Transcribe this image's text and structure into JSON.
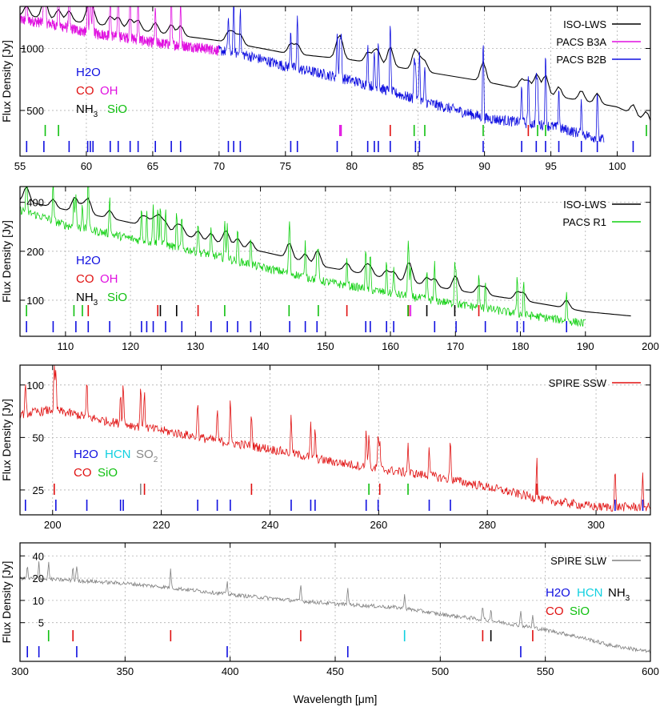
{
  "colors": {
    "H2O": "#1010e0",
    "CO": "#e01010",
    "OH": "#e010e0",
    "NH3": "#000000",
    "SiO": "#10c010",
    "HCN": "#10d0e0",
    "SO2": "#888888",
    "ISO-LWS": "#000000",
    "PACS B3A": "#e010e0",
    "PACS B2B": "#1010e0",
    "PACS R1": "#10d010",
    "SPIRE SSW": "#e01010",
    "SPIRE SLW": "#808080"
  },
  "chart_data": [
    {
      "type": "line",
      "panel": 1,
      "ylabel": "Flux Density [Jy]",
      "xlim": [
        55,
        102.5
      ],
      "ylim": [
        300,
        1600
      ],
      "yscale": "log",
      "xticks": [
        55,
        60,
        65,
        70,
        75,
        80,
        85,
        90,
        95,
        100
      ],
      "yticks": [
        500,
        1000
      ],
      "grid": true,
      "legend_position": "top-right",
      "legend": [
        "ISO-LWS",
        "PACS B3A",
        "PACS B2B"
      ],
      "species_labels": [
        [
          "H2O"
        ],
        [
          "CO",
          "OH"
        ],
        [
          "NH3",
          "SiO"
        ]
      ],
      "series": [
        {
          "name": "ISO-LWS",
          "x": [
            55,
            60,
            65,
            70,
            75,
            80,
            85,
            90,
            95,
            100,
            102.5
          ],
          "values": [
            1450,
            1330,
            1200,
            1090,
            950,
            880,
            780,
            690,
            590,
            520,
            430
          ]
        },
        {
          "name": "PACS B3A",
          "x": [
            55,
            57,
            60,
            63,
            65,
            68,
            70
          ],
          "values": [
            1380,
            1330,
            1200,
            1130,
            1070,
            1020,
            980
          ]
        },
        {
          "name": "PACS B2B",
          "x": [
            70,
            72,
            75,
            80,
            85,
            90,
            95,
            99
          ],
          "values": [
            980,
            930,
            820,
            700,
            560,
            460,
            420,
            360
          ]
        }
      ],
      "line_markers": [
        {
          "x": 55.5,
          "species": "H2O"
        },
        {
          "x": 56.8,
          "species": "H2O"
        },
        {
          "x": 58.7,
          "species": "H2O"
        },
        {
          "x": 60.1,
          "species": "H2O"
        },
        {
          "x": 60.3,
          "species": "H2O"
        },
        {
          "x": 60.5,
          "species": "H2O"
        },
        {
          "x": 61.8,
          "species": "H2O"
        },
        {
          "x": 62.4,
          "species": "H2O"
        },
        {
          "x": 63.3,
          "species": "H2O"
        },
        {
          "x": 63.9,
          "species": "H2O"
        },
        {
          "x": 65.2,
          "species": "H2O"
        },
        {
          "x": 66.4,
          "species": "H2O"
        },
        {
          "x": 67.1,
          "species": "H2O"
        },
        {
          "x": 70.7,
          "species": "H2O"
        },
        {
          "x": 71.1,
          "species": "H2O"
        },
        {
          "x": 71.6,
          "species": "H2O"
        },
        {
          "x": 75.4,
          "species": "H2O"
        },
        {
          "x": 75.9,
          "species": "H2O"
        },
        {
          "x": 78.9,
          "species": "H2O"
        },
        {
          "x": 81.2,
          "species": "H2O"
        },
        {
          "x": 81.7,
          "species": "H2O"
        },
        {
          "x": 82.0,
          "species": "H2O"
        },
        {
          "x": 82.9,
          "species": "H2O"
        },
        {
          "x": 84.8,
          "species": "H2O"
        },
        {
          "x": 85.1,
          "species": "H2O"
        },
        {
          "x": 89.9,
          "species": "H2O"
        },
        {
          "x": 92.8,
          "species": "H2O"
        },
        {
          "x": 93.9,
          "species": "H2O"
        },
        {
          "x": 94.6,
          "species": "H2O"
        },
        {
          "x": 95.6,
          "species": "H2O"
        },
        {
          "x": 97.3,
          "species": "H2O"
        },
        {
          "x": 98.5,
          "species": "H2O"
        },
        {
          "x": 101.2,
          "species": "H2O"
        },
        {
          "x": 82.9,
          "species": "CO",
          "row": 1
        },
        {
          "x": 93.3,
          "species": "CO",
          "row": 1
        },
        {
          "x": 79.2,
          "species": "OH",
          "row": 1
        },
        {
          "x": 79.1,
          "species": "OH",
          "row": 1
        },
        {
          "x": 56.9,
          "species": "SiO",
          "row": 1
        },
        {
          "x": 57.9,
          "species": "SiO",
          "row": 1
        },
        {
          "x": 84.7,
          "species": "SiO",
          "row": 1
        },
        {
          "x": 85.5,
          "species": "SiO",
          "row": 1
        },
        {
          "x": 89.9,
          "species": "SiO",
          "row": 1
        },
        {
          "x": 94.0,
          "species": "SiO",
          "row": 1
        },
        {
          "x": 94.6,
          "species": "SiO",
          "row": 1
        },
        {
          "x": 102.2,
          "species": "SiO",
          "row": 1
        }
      ]
    },
    {
      "type": "line",
      "panel": 2,
      "ylabel": "Flux Density [Jy]",
      "xlim": [
        103,
        200
      ],
      "ylim": [
        60,
        500
      ],
      "yscale": "log",
      "xticks": [
        110,
        120,
        130,
        140,
        150,
        160,
        170,
        180,
        190,
        200
      ],
      "yticks": [
        100,
        200,
        400
      ],
      "grid": true,
      "legend_position": "top-right",
      "legend": [
        "ISO-LWS",
        "PACS R1"
      ],
      "species_labels": [
        [
          "H2O"
        ],
        [
          "CO",
          "OH"
        ],
        [
          "NH3",
          "SiO"
        ]
      ],
      "series": [
        {
          "name": "ISO-LWS",
          "x": [
            103,
            110,
            120,
            130,
            140,
            150,
            160,
            170,
            180,
            190,
            197
          ],
          "values": [
            410,
            360,
            300,
            240,
            200,
            160,
            135,
            115,
            100,
            85,
            80
          ]
        },
        {
          "name": "PACS R1",
          "x": [
            103,
            110,
            120,
            130,
            140,
            150,
            160,
            170,
            180,
            190
          ],
          "values": [
            360,
            290,
            240,
            200,
            160,
            130,
            110,
            95,
            82,
            72
          ]
        }
      ],
      "line_markers": [
        {
          "x": 104.0,
          "species": "H2O"
        },
        {
          "x": 108.1,
          "species": "H2O"
        },
        {
          "x": 111.6,
          "species": "H2O"
        },
        {
          "x": 113.5,
          "species": "H2O"
        },
        {
          "x": 116.8,
          "species": "H2O"
        },
        {
          "x": 121.7,
          "species": "H2O"
        },
        {
          "x": 122.5,
          "species": "H2O"
        },
        {
          "x": 123.5,
          "species": "H2O"
        },
        {
          "x": 125.4,
          "species": "H2O"
        },
        {
          "x": 127.9,
          "species": "H2O"
        },
        {
          "x": 132.4,
          "species": "H2O"
        },
        {
          "x": 134.9,
          "species": "H2O"
        },
        {
          "x": 136.5,
          "species": "H2O"
        },
        {
          "x": 138.5,
          "species": "H2O"
        },
        {
          "x": 144.5,
          "species": "H2O"
        },
        {
          "x": 146.9,
          "species": "H2O"
        },
        {
          "x": 148.7,
          "species": "H2O"
        },
        {
          "x": 156.2,
          "species": "H2O"
        },
        {
          "x": 156.9,
          "species": "H2O"
        },
        {
          "x": 159.4,
          "species": "H2O"
        },
        {
          "x": 160.5,
          "species": "H2O"
        },
        {
          "x": 166.8,
          "species": "H2O"
        },
        {
          "x": 170.1,
          "species": "H2O"
        },
        {
          "x": 174.6,
          "species": "H2O"
        },
        {
          "x": 179.5,
          "species": "H2O"
        },
        {
          "x": 180.5,
          "species": "H2O"
        },
        {
          "x": 187.1,
          "species": "H2O"
        },
        {
          "x": 113.5,
          "species": "CO",
          "row": 1
        },
        {
          "x": 124.2,
          "species": "CO",
          "row": 1
        },
        {
          "x": 130.4,
          "species": "CO",
          "row": 1
        },
        {
          "x": 153.3,
          "species": "CO",
          "row": 1
        },
        {
          "x": 162.8,
          "species": "CO",
          "row": 1
        },
        {
          "x": 173.6,
          "species": "CO",
          "row": 1
        },
        {
          "x": 163.1,
          "species": "OH",
          "row": 1
        },
        {
          "x": 124.6,
          "species": "NH3",
          "row": 1
        },
        {
          "x": 127.1,
          "species": "NH3",
          "row": 1
        },
        {
          "x": 165.6,
          "species": "NH3",
          "row": 1
        },
        {
          "x": 169.9,
          "species": "NH3",
          "row": 1
        },
        {
          "x": 104.0,
          "species": "SiO",
          "row": 1
        },
        {
          "x": 111.3,
          "species": "SiO",
          "row": 1
        },
        {
          "x": 112.6,
          "species": "SiO",
          "row": 1
        },
        {
          "x": 134.5,
          "species": "SiO",
          "row": 1
        },
        {
          "x": 144.4,
          "species": "SiO",
          "row": 1
        },
        {
          "x": 148.9,
          "species": "SiO",
          "row": 1
        },
        {
          "x": 162.7,
          "species": "SiO",
          "row": 1
        }
      ]
    },
    {
      "type": "line",
      "panel": 3,
      "ylabel": "Flux Density [Jy]",
      "xlim": [
        194,
        310
      ],
      "ylim": [
        18,
        130
      ],
      "yscale": "log",
      "xticks": [
        200,
        220,
        240,
        260,
        280,
        300
      ],
      "yticks": [
        25,
        50,
        100
      ],
      "grid": true,
      "legend_position": "top-right",
      "legend": [
        "SPIRE SSW"
      ],
      "species_labels": [
        [
          "H2O",
          "HCN",
          "SO2"
        ],
        [
          "CO",
          "SiO"
        ]
      ],
      "series": [
        {
          "name": "SPIRE SSW",
          "x": [
            194,
            200,
            210,
            220,
            230,
            240,
            250,
            260,
            270,
            280,
            290,
            300,
            310
          ],
          "values": [
            68,
            72,
            62,
            55,
            48,
            43,
            37,
            33,
            30,
            26,
            22,
            20,
            20
          ]
        }
      ],
      "line_markers": [
        {
          "x": 195.0,
          "species": "H2O"
        },
        {
          "x": 200.6,
          "species": "H2O"
        },
        {
          "x": 206.3,
          "species": "H2O"
        },
        {
          "x": 212.5,
          "species": "H2O"
        },
        {
          "x": 213.0,
          "species": "H2O"
        },
        {
          "x": 226.7,
          "species": "H2O"
        },
        {
          "x": 230.3,
          "species": "H2O"
        },
        {
          "x": 232.7,
          "species": "H2O"
        },
        {
          "x": 243.9,
          "species": "H2O"
        },
        {
          "x": 247.5,
          "species": "H2O"
        },
        {
          "x": 248.3,
          "species": "H2O"
        },
        {
          "x": 257.7,
          "species": "H2O"
        },
        {
          "x": 259.9,
          "species": "H2O"
        },
        {
          "x": 269.3,
          "species": "H2O"
        },
        {
          "x": 273.2,
          "species": "H2O"
        },
        {
          "x": 303.5,
          "species": "H2O"
        },
        {
          "x": 308.6,
          "species": "H2O"
        },
        {
          "x": 200.3,
          "species": "CO",
          "row": 1
        },
        {
          "x": 216.9,
          "species": "CO",
          "row": 1
        },
        {
          "x": 236.6,
          "species": "CO",
          "row": 1
        },
        {
          "x": 260.2,
          "species": "CO",
          "row": 1
        },
        {
          "x": 289.1,
          "species": "CO",
          "row": 1
        },
        {
          "x": 258.2,
          "species": "SiO",
          "row": 1
        },
        {
          "x": 265.4,
          "species": "SiO",
          "row": 1
        },
        {
          "x": 216.2,
          "species": "SO2",
          "row": 1
        }
      ]
    },
    {
      "type": "line",
      "panel": 4,
      "xlabel": "Wavelength [μm]",
      "ylabel": "Flux Density [Jy]",
      "xlim": [
        300,
        600
      ],
      "ylim": [
        1.5,
        60
      ],
      "yscale": "log",
      "xticks": [
        300,
        350,
        400,
        450,
        500,
        550,
        600
      ],
      "yticks": [
        5,
        10,
        20,
        40
      ],
      "grid": true,
      "legend_position": "top-right",
      "legend": [
        "SPIRE SLW"
      ],
      "species_labels": [
        [
          "H2O",
          "HCN",
          "NH3"
        ],
        [
          "CO",
          "SiO"
        ]
      ],
      "series": [
        {
          "name": "SPIRE SLW",
          "x": [
            300,
            320,
            350,
            380,
            400,
            430,
            450,
            480,
            500,
            530,
            550,
            580,
            600
          ],
          "values": [
            20,
            19,
            17,
            14,
            12,
            10,
            9,
            8,
            6.5,
            5,
            4,
            2.5,
            2
          ]
        }
      ],
      "line_markers": [
        {
          "x": 303.5,
          "species": "H2O"
        },
        {
          "x": 309.0,
          "species": "H2O"
        },
        {
          "x": 327.0,
          "species": "H2O"
        },
        {
          "x": 398.6,
          "species": "H2O"
        },
        {
          "x": 456.0,
          "species": "H2O"
        },
        {
          "x": 538.3,
          "species": "H2O"
        },
        {
          "x": 325.2,
          "species": "CO",
          "row": 1
        },
        {
          "x": 371.7,
          "species": "CO",
          "row": 1
        },
        {
          "x": 433.6,
          "species": "CO",
          "row": 1
        },
        {
          "x": 520.2,
          "species": "CO",
          "row": 1
        },
        {
          "x": 544.0,
          "species": "CO",
          "row": 1
        },
        {
          "x": 313.6,
          "species": "SiO",
          "row": 1
        },
        {
          "x": 483.0,
          "species": "HCN",
          "row": 1
        },
        {
          "x": 524.1,
          "species": "NH3",
          "row": 1
        }
      ]
    }
  ]
}
